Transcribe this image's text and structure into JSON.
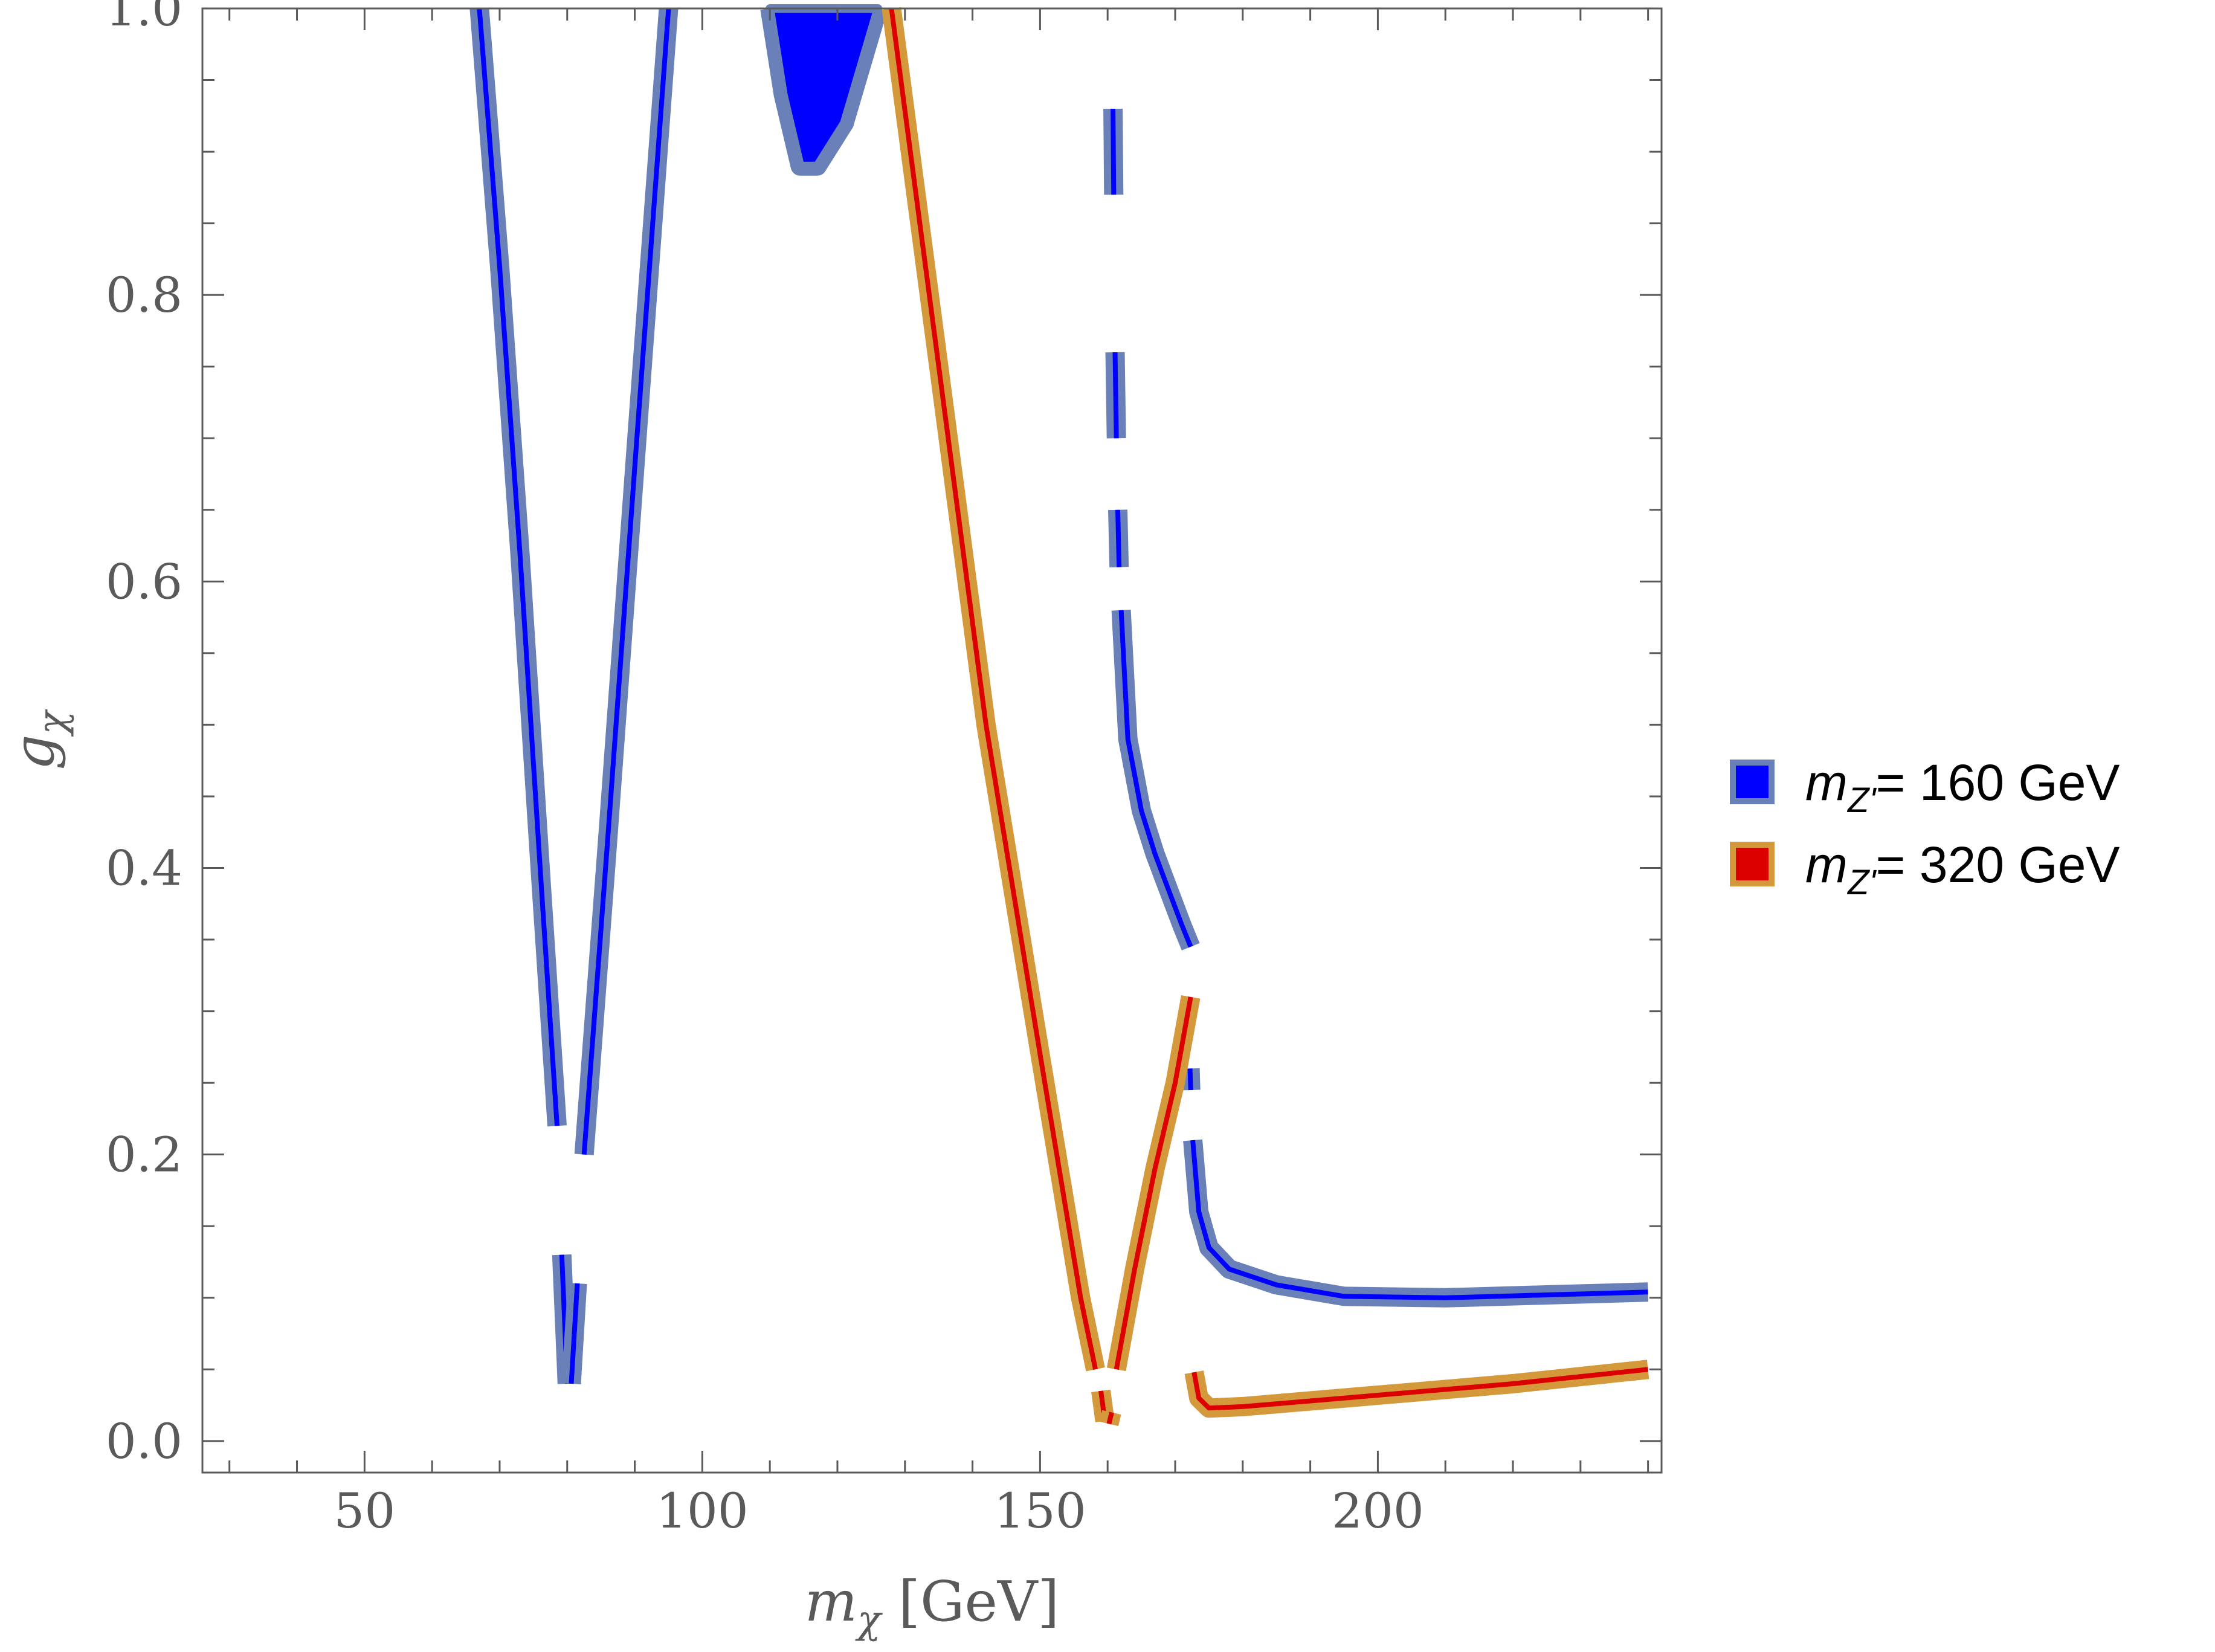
{
  "chart_data": {
    "type": "line",
    "xlabel": {
      "symbol": "m",
      "sub": "χ",
      "unit": " [GeV]"
    },
    "ylabel": {
      "symbol": "g",
      "sub": "χ"
    },
    "xlim": [
      26,
      242
    ],
    "ylim": [
      -0.022,
      1.0
    ],
    "x_ticks": [
      50,
      100,
      150,
      200
    ],
    "x_tick_labels": [
      "50",
      "100",
      "150",
      "200"
    ],
    "y_ticks": [
      0.0,
      0.2,
      0.4,
      0.6,
      0.8,
      1.0
    ],
    "y_tick_labels": [
      "0.0",
      "0.2",
      "0.4",
      "0.6",
      "0.8",
      "1.0"
    ],
    "x_minor_step": 10,
    "y_minor_step": 0.05,
    "grid": false,
    "legend_position": "right",
    "series": [
      {
        "name": "m_Z' = 160 GeV",
        "legend": {
          "label": "m",
          "sub": "Z'",
          "value": "= 160 GeV"
        },
        "edge_color": "#6a80b8",
        "fill_color": "#0000ff",
        "segments": [
          [
            [
              67,
              1.0
            ],
            [
              70,
              0.82
            ],
            [
              73,
              0.62
            ],
            [
              76,
              0.4
            ],
            [
              78.5,
              0.22
            ]
          ],
          [
            [
              79.2,
              0.13
            ],
            [
              80,
              0.04
            ]
          ],
          [
            [
              80.6,
              0.04
            ],
            [
              81.5,
              0.11
            ]
          ],
          [
            [
              82.5,
              0.2
            ],
            [
              86,
              0.42
            ],
            [
              90,
              0.68
            ],
            [
              95,
              1.0
            ]
          ],
          [
            [
              110,
              1.0
            ],
            [
              112,
              0.94
            ],
            [
              114.5,
              0.89
            ],
            [
              117,
              0.89
            ],
            [
              121,
              0.92
            ],
            [
              126,
              1.0
            ]
          ],
          [
            [
              160.8,
              0.93
            ],
            [
              160.9,
              0.87
            ]
          ],
          [
            [
              161.1,
              0.76
            ],
            [
              161.3,
              0.7
            ]
          ],
          [
            [
              161.5,
              0.65
            ],
            [
              161.7,
              0.61
            ]
          ],
          [
            [
              162,
              0.58
            ],
            [
              163,
              0.49
            ],
            [
              165,
              0.44
            ],
            [
              167,
              0.41
            ],
            [
              169,
              0.385
            ],
            [
              171,
              0.36
            ],
            [
              172.3,
              0.345
            ]
          ],
          [
            [
              172.2,
              0.26
            ],
            [
              172.3,
              0.245
            ]
          ],
          [
            [
              172.6,
              0.21
            ],
            [
              173.5,
              0.16
            ],
            [
              175,
              0.135
            ],
            [
              178,
              0.12
            ],
            [
              185,
              0.109
            ],
            [
              195,
              0.101
            ],
            [
              210,
              0.1
            ],
            [
              225,
              0.102
            ],
            [
              240,
              0.104
            ]
          ]
        ]
      },
      {
        "name": "m_Z' = 320 GeV",
        "legend": {
          "label": "m",
          "sub": "Z'",
          "value": "= 320 GeV"
        },
        "edge_color": "#d4993a",
        "fill_color": "#dd0000",
        "segments": [
          [
            [
              128,
              1.0
            ],
            [
              135,
              0.75
            ],
            [
              142,
              0.5
            ],
            [
              150,
              0.27
            ],
            [
              156,
              0.1
            ],
            [
              158.2,
              0.05
            ]
          ],
          [
            [
              159,
              0.035
            ],
            [
              159.6,
              0.014
            ]
          ],
          [
            [
              160.2,
              0.012
            ],
            [
              160.6,
              0.02
            ]
          ],
          [
            [
              161.3,
              0.05
            ],
            [
              164,
              0.12
            ],
            [
              167,
              0.19
            ],
            [
              170,
              0.25
            ],
            [
              172.3,
              0.31
            ]
          ],
          [
            [
              172.8,
              0.048
            ],
            [
              173.5,
              0.03
            ],
            [
              175,
              0.023
            ],
            [
              180,
              0.024
            ],
            [
              190,
              0.028
            ],
            [
              200,
              0.032
            ],
            [
              220,
              0.04
            ],
            [
              240,
              0.05
            ]
          ]
        ]
      }
    ]
  }
}
